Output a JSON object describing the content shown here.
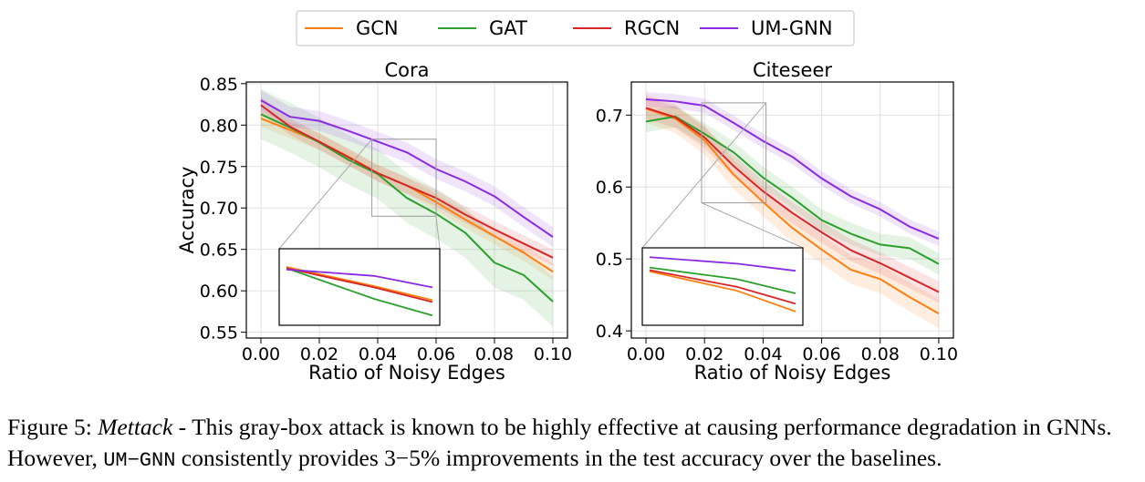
{
  "legend": [
    {
      "name": "GCN",
      "color": "#ff7f0e"
    },
    {
      "name": "GAT",
      "color": "#2ca02c"
    },
    {
      "name": "RGCN",
      "color": "#d62728"
    },
    {
      "name": "UM-GNN",
      "color": "#8a2be2"
    }
  ],
  "caption": {
    "figure": "Figure 5:",
    "method": "Mettack",
    "part1": " - This gray-box attack is known to be highly effective at causing performance degradation in GNNs. However, ",
    "model": "UM−GNN",
    "part2": " consistently provides ",
    "range": "3−5%",
    "part3": " improvements in the test accuracy over the baselines."
  },
  "chart_data": [
    {
      "type": "line",
      "title": "Cora",
      "xlabel": "Ratio of Noisy Edges",
      "ylabel": "Accuracy",
      "xlim": [
        -0.005,
        0.105
      ],
      "ylim": [
        0.543,
        0.852
      ],
      "xticks": [
        "0.00",
        "0.02",
        "0.04",
        "0.06",
        "0.08",
        "0.10"
      ],
      "yticks": [
        "0.55",
        "0.60",
        "0.65",
        "0.70",
        "0.75",
        "0.80",
        "0.85"
      ],
      "grid": true,
      "x": [
        0.0,
        0.01,
        0.02,
        0.03,
        0.04,
        0.05,
        0.06,
        0.07,
        0.08,
        0.09,
        0.1
      ],
      "series": [
        {
          "name": "GCN",
          "color": "#ff7f0e",
          "values": [
            0.808,
            0.794,
            0.78,
            0.762,
            0.742,
            0.727,
            0.707,
            0.686,
            0.666,
            0.646,
            0.623
          ],
          "band": 0.01
        },
        {
          "name": "GAT",
          "color": "#2ca02c",
          "values": [
            0.813,
            0.797,
            0.779,
            0.758,
            0.741,
            0.712,
            0.693,
            0.67,
            0.634,
            0.619,
            0.587
          ],
          "band": 0.03
        },
        {
          "name": "RGCN",
          "color": "#d62728",
          "values": [
            0.824,
            0.798,
            0.78,
            0.761,
            0.742,
            0.727,
            0.712,
            0.692,
            0.674,
            0.657,
            0.64
          ],
          "band": 0.01
        },
        {
          "name": "UM-GNN",
          "color": "#8a2be2",
          "values": [
            0.83,
            0.81,
            0.805,
            0.793,
            0.78,
            0.767,
            0.747,
            0.732,
            0.714,
            0.689,
            0.665
          ],
          "band": 0.012
        }
      ],
      "zoom": {
        "xlim": [
          0.038,
          0.06
        ],
        "ylim": [
          0.69,
          0.783
        ]
      },
      "inset": {
        "x": [
          0.0,
          0.033,
          0.055
        ],
        "series": [
          {
            "name": "GCN",
            "values": [
              0.8,
              0.5,
              0.28
            ]
          },
          {
            "name": "GAT",
            "values": [
              0.78,
              0.3,
              0.04
            ]
          },
          {
            "name": "RGCN",
            "values": [
              0.78,
              0.48,
              0.25
            ]
          },
          {
            "name": "UM-GNN",
            "values": [
              0.76,
              0.66,
              0.48
            ]
          }
        ]
      }
    },
    {
      "type": "line",
      "title": "Citeseer",
      "xlabel": "Ratio of Noisy Edges",
      "ylabel": "",
      "xlim": [
        -0.005,
        0.105
      ],
      "ylim": [
        0.39,
        0.746
      ],
      "xticks": [
        "0.00",
        "0.02",
        "0.04",
        "0.06",
        "0.08",
        "0.10"
      ],
      "yticks": [
        "0.4",
        "0.5",
        "0.6",
        "0.7"
      ],
      "grid": true,
      "x": [
        0.0,
        0.01,
        0.02,
        0.03,
        0.04,
        0.05,
        0.06,
        0.07,
        0.08,
        0.09,
        0.1
      ],
      "series": [
        {
          "name": "GCN",
          "color": "#ff7f0e",
          "values": [
            0.709,
            0.695,
            0.665,
            0.617,
            0.579,
            0.543,
            0.513,
            0.485,
            0.472,
            0.447,
            0.424
          ],
          "band": 0.02
        },
        {
          "name": "GAT",
          "color": "#2ca02c",
          "values": [
            0.691,
            0.698,
            0.674,
            0.648,
            0.613,
            0.585,
            0.554,
            0.535,
            0.52,
            0.515,
            0.493
          ],
          "band": 0.015
        },
        {
          "name": "RGCN",
          "color": "#d62728",
          "values": [
            0.71,
            0.697,
            0.669,
            0.629,
            0.594,
            0.564,
            0.537,
            0.512,
            0.494,
            0.474,
            0.454
          ],
          "band": 0.015
        },
        {
          "name": "UM-GNN",
          "color": "#8a2be2",
          "values": [
            0.722,
            0.719,
            0.713,
            0.689,
            0.664,
            0.642,
            0.612,
            0.587,
            0.569,
            0.545,
            0.528
          ],
          "band": 0.01
        }
      ],
      "zoom": {
        "xlim": [
          0.019,
          0.041
        ],
        "ylim": [
          0.578,
          0.717
        ]
      },
      "inset": {
        "x": [
          0.0,
          0.033,
          0.055
        ],
        "series": [
          {
            "name": "GCN",
            "values": [
              0.72,
              0.42,
              0.1
            ]
          },
          {
            "name": "GAT",
            "values": [
              0.78,
              0.6,
              0.38
            ]
          },
          {
            "name": "RGCN",
            "values": [
              0.74,
              0.48,
              0.22
            ]
          },
          {
            "name": "UM-GNN",
            "values": [
              0.94,
              0.84,
              0.73
            ]
          }
        ]
      }
    }
  ]
}
